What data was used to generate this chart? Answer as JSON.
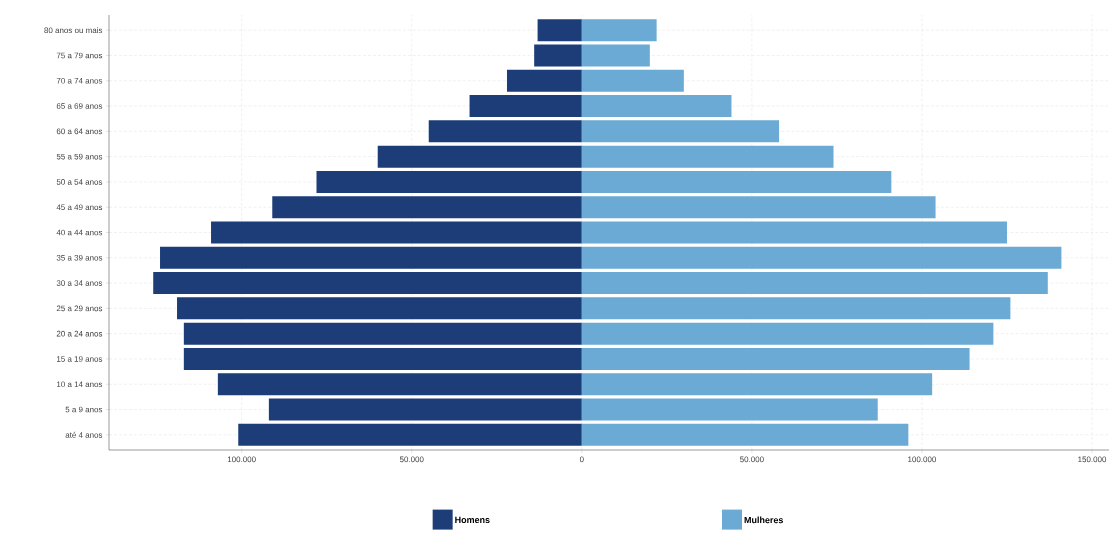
{
  "chart_data": {
    "type": "bar",
    "orientation": "horizontal",
    "categories": [
      "80 anos ou mais",
      "75 a 79 anos",
      "70 a 74 anos",
      "65 a 69 anos",
      "60 a 64 anos",
      "55 a 59 anos",
      "50 a 54 anos",
      "45 a 49 anos",
      "40 a 44 anos",
      "35 a 39 anos",
      "30 a 34 anos",
      "25 a 29 anos",
      "20 a 24 anos",
      "15 a 19 anos",
      "10 a 14 anos",
      "5 a 9 anos",
      "até 4 anos"
    ],
    "series": [
      {
        "name": "Homens",
        "color": "#1c3d78",
        "values": [
          -13000,
          -14000,
          -22000,
          -33000,
          -45000,
          -60000,
          -78000,
          -91000,
          -109000,
          -124000,
          -126000,
          -119000,
          -117000,
          -117000,
          -107000,
          -92000,
          -101000
        ]
      },
      {
        "name": "Mulheres",
        "color": "#6aaad5",
        "values": [
          22000,
          20000,
          30000,
          44000,
          58000,
          74000,
          91000,
          104000,
          125000,
          141000,
          137000,
          126000,
          121000,
          114000,
          103000,
          87000,
          96000
        ]
      }
    ],
    "xlim": [
      -139000,
      155000
    ],
    "xticks": [
      {
        "value": -100000,
        "label": "100.000"
      },
      {
        "value": -50000,
        "label": "50.000"
      },
      0,
      {
        "value": 50000,
        "label": "50.000"
      },
      {
        "value": 100000,
        "label": "100.000"
      },
      {
        "value": 150000,
        "label": "150.000"
      }
    ],
    "grid": true,
    "legend": "bottom",
    "stacked": true
  }
}
